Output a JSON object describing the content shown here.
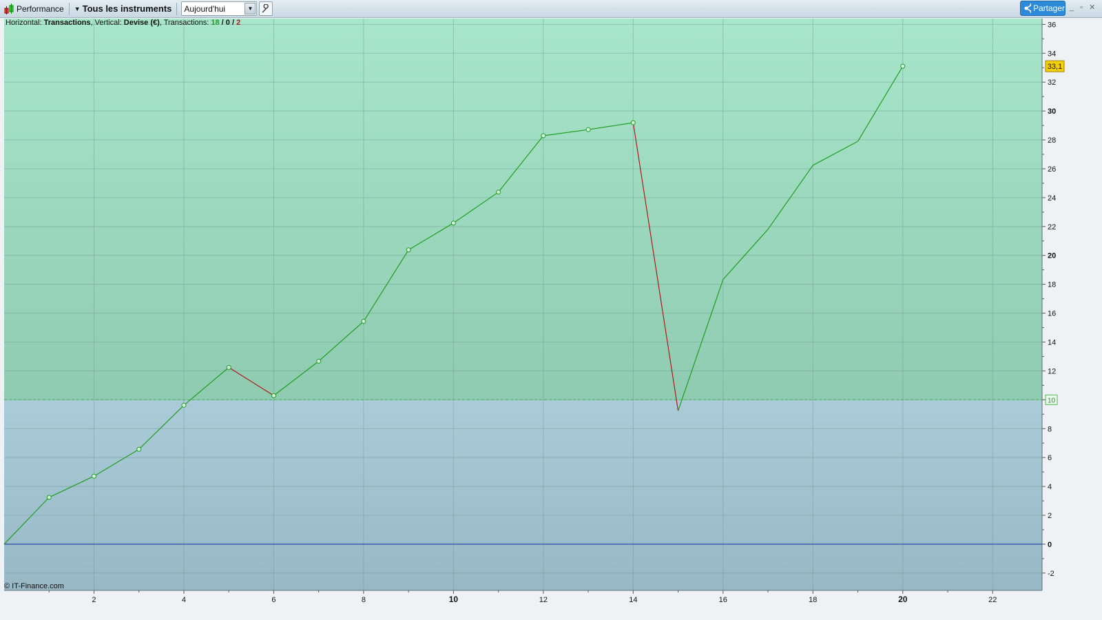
{
  "toolbar": {
    "performance_label": "Performance",
    "instruments_label": "Tous les instruments",
    "period_value": "Aujourd'hui",
    "share_label": "Partager",
    "window_controls": "_ ▫ ✕"
  },
  "info": {
    "h_prefix": "Horizontal: ",
    "h_value": "Transactions",
    "v_prefix": ", Vertical: ",
    "v_value": "Devise (€)",
    "t_prefix": ", Transactions: ",
    "wins": "18",
    "slash1": " / ",
    "neutral": "0",
    "slash2": " / ",
    "losses": "2"
  },
  "copyright": "© IT-Finance.com",
  "chart_data": {
    "type": "line",
    "xlabel": "Transactions",
    "ylabel": "Devise (€)",
    "xlim": [
      0,
      23.1
    ],
    "ylim": [
      -3.2,
      36.4
    ],
    "x_ticks": [
      2,
      4,
      6,
      8,
      10,
      12,
      14,
      16,
      18,
      20,
      22
    ],
    "y_ticks": [
      -2,
      0,
      2,
      4,
      6,
      8,
      10,
      12,
      14,
      16,
      18,
      20,
      22,
      24,
      26,
      28,
      30,
      32,
      34,
      36
    ],
    "grid": true,
    "x": [
      0,
      1,
      2,
      3,
      4,
      5,
      6,
      7,
      8,
      9,
      10,
      11,
      12,
      13,
      14,
      15,
      16,
      17,
      18,
      19,
      20
    ],
    "values": [
      0,
      3.24,
      4.71,
      6.57,
      9.62,
      12.24,
      10.29,
      12.67,
      15.43,
      20.38,
      22.24,
      24.38,
      28.29,
      28.71,
      29.19,
      9.24,
      18.33,
      21.81,
      26.24,
      27.9,
      33.1
    ],
    "markers": [
      false,
      true,
      true,
      true,
      true,
      true,
      true,
      true,
      true,
      true,
      true,
      true,
      true,
      true,
      true,
      false,
      false,
      false,
      false,
      false,
      true
    ],
    "threshold": 10,
    "threshold_label": "10",
    "last_value_label": "33,1",
    "colors": {
      "gain": "#1e9e1e",
      "loss": "#b01818",
      "zero_line": "#1f3fa8",
      "last_badge": "#f5d000",
      "above_bg": "#a6e5cb",
      "below_bg": "#a9cad8"
    }
  }
}
